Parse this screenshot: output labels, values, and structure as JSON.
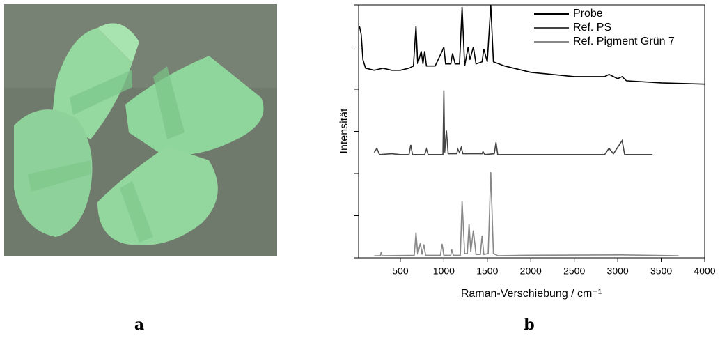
{
  "panel_a": {
    "label": "a"
  },
  "chart_data": {
    "type": "line",
    "label": "b",
    "x_label": "Raman-Verschiebung / cm⁻¹",
    "y_label": "Intensität",
    "xlim": [
      20,
      4000
    ],
    "xticks": [
      500,
      1000,
      1500,
      2000,
      2500,
      3000,
      3500,
      4000
    ],
    "ylim": [
      0,
      6
    ],
    "yticks": [
      0,
      1,
      2,
      3,
      4,
      5,
      6
    ],
    "legend": "upper right",
    "series": [
      {
        "name": "Probe",
        "color": "#000000",
        "x": [
          30,
          50,
          70,
          100,
          200,
          300,
          400,
          500,
          600,
          650,
          680,
          700,
          740,
          760,
          780,
          800,
          900,
          980,
          1000,
          1020,
          1080,
          1100,
          1130,
          1180,
          1210,
          1240,
          1280,
          1300,
          1340,
          1370,
          1440,
          1460,
          1500,
          1540,
          1570,
          1700,
          2000,
          2500,
          2850,
          2900,
          3000,
          3050,
          3100,
          3500,
          4000
        ],
        "values": [
          5.5,
          5.3,
          4.7,
          4.5,
          4.45,
          4.5,
          4.45,
          4.45,
          4.5,
          4.55,
          5.5,
          4.6,
          4.9,
          4.6,
          4.9,
          4.55,
          4.55,
          4.9,
          5.0,
          4.6,
          4.6,
          4.85,
          4.6,
          4.6,
          5.95,
          4.55,
          5.0,
          4.7,
          5.0,
          4.6,
          4.65,
          4.95,
          4.65,
          6.0,
          4.65,
          4.55,
          4.4,
          4.3,
          4.3,
          4.35,
          4.25,
          4.3,
          4.2,
          4.15,
          4.12
        ]
      },
      {
        "name": "Ref. PS",
        "color": "#444444",
        "x": [
          200,
          230,
          260,
          400,
          500,
          600,
          620,
          640,
          780,
          800,
          820,
          990,
          1000,
          1010,
          1030,
          1050,
          1150,
          1160,
          1180,
          1200,
          1220,
          1440,
          1450,
          1470,
          1580,
          1600,
          1620,
          2000,
          2850,
          2900,
          2950,
          3050,
          3080,
          3400
        ],
        "values": [
          2.5,
          2.6,
          2.45,
          2.47,
          2.45,
          2.45,
          2.68,
          2.45,
          2.45,
          2.58,
          2.45,
          2.45,
          3.97,
          2.5,
          3.02,
          2.47,
          2.47,
          2.58,
          2.5,
          2.62,
          2.47,
          2.47,
          2.52,
          2.45,
          2.47,
          2.74,
          2.45,
          2.45,
          2.45,
          2.6,
          2.47,
          2.78,
          2.45,
          2.45
        ]
      },
      {
        "name": "Ref. Pigment Grün 7",
        "color": "#888888",
        "x": [
          200,
          270,
          280,
          290,
          660,
          680,
          700,
          730,
          750,
          770,
          790,
          960,
          980,
          1000,
          1080,
          1090,
          1110,
          1190,
          1210,
          1240,
          1270,
          1290,
          1310,
          1340,
          1370,
          1420,
          1440,
          1460,
          1510,
          1540,
          1570,
          1620,
          1900,
          3050,
          3700
        ],
        "values": [
          0.05,
          0.05,
          0.14,
          0.05,
          0.06,
          0.6,
          0.08,
          0.35,
          0.08,
          0.32,
          0.06,
          0.06,
          0.33,
          0.06,
          0.06,
          0.2,
          0.06,
          0.06,
          1.35,
          0.1,
          0.1,
          0.8,
          0.15,
          0.65,
          0.08,
          0.08,
          0.53,
          0.08,
          0.1,
          2.03,
          0.1,
          0.05,
          0.06,
          0.07,
          0.05
        ]
      }
    ]
  }
}
